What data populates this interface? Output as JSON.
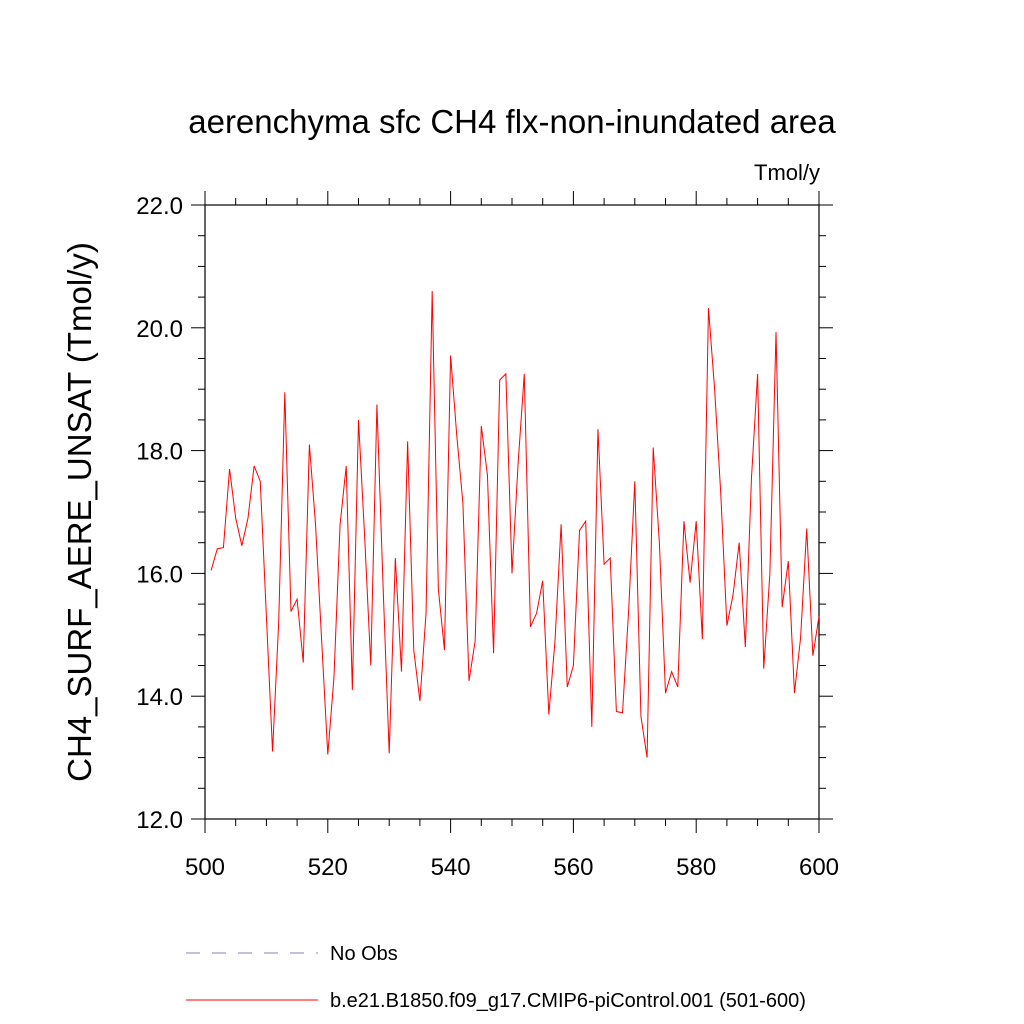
{
  "chart_data": {
    "type": "line",
    "title": "aerenchyma sfc CH4 flx-non-inundated area",
    "units_label": "Tmol/y",
    "ylabel": "CH4_SURF_AERE_UNSAT  (Tmol/y)",
    "xlim": [
      500,
      600
    ],
    "ylim": [
      12.0,
      22.0
    ],
    "x_ticks": [
      500,
      520,
      540,
      560,
      580,
      600
    ],
    "x_tick_labels": [
      "500",
      "520",
      "540",
      "560",
      "580",
      "600"
    ],
    "y_ticks": [
      12,
      14,
      16,
      18,
      20,
      22
    ],
    "y_tick_labels": [
      "12.0",
      "14.0",
      "16.0",
      "18.0",
      "20.0",
      "22.0"
    ],
    "x_minor_step": 5,
    "y_minor_step": 0.5,
    "grid": false,
    "legend_position": "bottom",
    "series": [
      {
        "name": "No Obs",
        "color": "#8a7fc0",
        "dash": "dashed",
        "values": []
      },
      {
        "name": "b.e21.B1850.f09_g17.CMIP6-piControl.001 (501-600)",
        "color": "#ff0000",
        "dash": "solid",
        "x": [
          501,
          502,
          503,
          504,
          505,
          506,
          507,
          508,
          509,
          510,
          511,
          512,
          513,
          514,
          515,
          516,
          517,
          518,
          519,
          520,
          521,
          522,
          523,
          524,
          525,
          526,
          527,
          528,
          529,
          530,
          531,
          532,
          533,
          534,
          535,
          536,
          537,
          538,
          539,
          540,
          541,
          542,
          543,
          544,
          545,
          546,
          547,
          548,
          549,
          550,
          551,
          552,
          553,
          554,
          555,
          556,
          557,
          558,
          559,
          560,
          561,
          562,
          563,
          564,
          565,
          566,
          567,
          568,
          569,
          570,
          571,
          572,
          573,
          574,
          575,
          576,
          577,
          578,
          579,
          580,
          581,
          582,
          583,
          584,
          585,
          586,
          587,
          588,
          589,
          590,
          591,
          592,
          593,
          594,
          595,
          596,
          597,
          598,
          599,
          600
        ],
        "values": [
          16.05,
          16.4,
          16.42,
          17.7,
          16.9,
          16.45,
          16.9,
          17.75,
          17.5,
          15.3,
          13.1,
          15.2,
          18.95,
          15.38,
          15.58,
          14.55,
          18.1,
          16.8,
          14.9,
          13.05,
          14.3,
          16.8,
          17.75,
          14.1,
          18.5,
          16.6,
          14.5,
          18.75,
          15.8,
          13.07,
          16.25,
          14.4,
          18.15,
          14.75,
          13.92,
          15.35,
          20.6,
          15.75,
          14.75,
          19.55,
          18.25,
          17.15,
          14.25,
          14.9,
          18.4,
          17.6,
          14.7,
          19.15,
          19.25,
          16.0,
          17.8,
          19.25,
          15.13,
          15.35,
          15.88,
          13.7,
          14.9,
          16.8,
          14.15,
          14.5,
          16.7,
          16.85,
          13.5,
          18.35,
          16.15,
          16.25,
          13.75,
          13.73,
          15.4,
          17.5,
          13.67,
          13.0,
          18.05,
          16.5,
          14.05,
          14.4,
          14.15,
          16.85,
          15.85,
          16.85,
          14.93,
          20.32,
          19.0,
          17.3,
          15.15,
          15.65,
          16.5,
          14.8,
          17.55,
          19.25,
          14.45,
          16.0,
          19.93,
          15.45,
          16.2,
          14.05,
          14.95,
          16.73,
          14.66,
          15.3
        ]
      }
    ]
  }
}
